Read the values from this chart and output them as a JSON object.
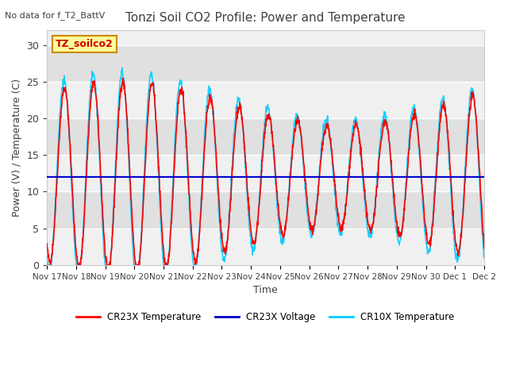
{
  "title": "Tonzi Soil CO2 Profile: Power and Temperature",
  "subtitle": "No data for f_T2_BattV",
  "xlabel": "Time",
  "ylabel": "Power (V) / Temperature (C)",
  "ylim": [
    0,
    32
  ],
  "yticks": [
    0,
    5,
    10,
    15,
    20,
    25,
    30
  ],
  "xlim_days": [
    0,
    15
  ],
  "xtick_labels": [
    "Nov 17",
    "Nov 18",
    "Nov 19",
    "Nov 20",
    "Nov 21",
    "Nov 22",
    "Nov 23",
    "Nov 24",
    "Nov 25",
    "Nov 26",
    "Nov 27",
    "Nov 28",
    "Nov 29",
    "Nov 30",
    "Dec 1",
    "Dec 2"
  ],
  "voltage_level": 12.0,
  "legend_entries": [
    "CR23X Temperature",
    "CR23X Voltage",
    "CR10X Temperature"
  ],
  "legend_colors": [
    "#ff0000",
    "#0000cc",
    "#00ccff"
  ],
  "annotation_box_text": "TZ_soilco2",
  "annotation_box_color": "#ffff99",
  "annotation_box_border": "#cc8800",
  "annotation_text_color": "#cc0000",
  "bg_color": "#ffffff",
  "plot_bg_color": "#f0f0f0",
  "band_color": "#e0e0e0",
  "grid_color": "#ffffff",
  "title_color": "#404040",
  "axis_label_color": "#404040",
  "tick_color": "#404040"
}
